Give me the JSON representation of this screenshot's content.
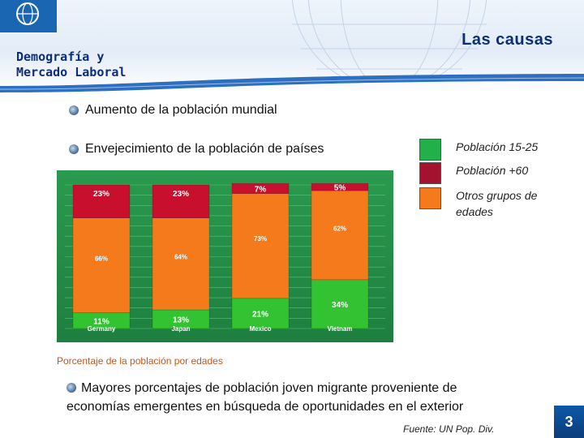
{
  "header": {
    "left_title_line1": "Demografía y",
    "left_title_line2": "Mercado Laboral",
    "right_title": "Las causas"
  },
  "bullets": {
    "b1": "Aumento de la población mundial",
    "b2": "Envejecimiento de la población de países",
    "b3": "Mayores porcentajes de población joven migrante proveniente de economías emergentes en búsqueda de oportunidades en el exterior"
  },
  "legend": [
    {
      "label": "Población 15-25",
      "color": "#22b04a"
    },
    {
      "label": "Población +60",
      "color": "#a3132f"
    },
    {
      "label": "Otros grupos de edades",
      "color": "#f47a1c"
    }
  ],
  "chart_caption": "Porcentaje de la población por edades",
  "source": "Fuente: UN Pop. Div.",
  "page_number": "3",
  "chart_data": {
    "type": "bar",
    "stacked": true,
    "categories": [
      "Germany",
      "Japan",
      "Mexico",
      "Vietnam"
    ],
    "series": [
      {
        "name": "Población 15-25",
        "color": "#33c232",
        "values": [
          11,
          13,
          21,
          34
        ],
        "labels": [
          "11%",
          "13%",
          "21%",
          "34%"
        ]
      },
      {
        "name": "Otros grupos de edades",
        "color": "#f47a1c",
        "values": [
          66,
          64,
          73,
          62
        ],
        "labels": [
          "66%",
          "64%",
          "73%",
          "62%"
        ]
      },
      {
        "name": "Población +60",
        "color": "#c8102e",
        "values": [
          23,
          23,
          7,
          5
        ],
        "labels": [
          "23%",
          "23%",
          "7%",
          "5%"
        ]
      }
    ],
    "ylim": [
      0,
      100
    ]
  }
}
